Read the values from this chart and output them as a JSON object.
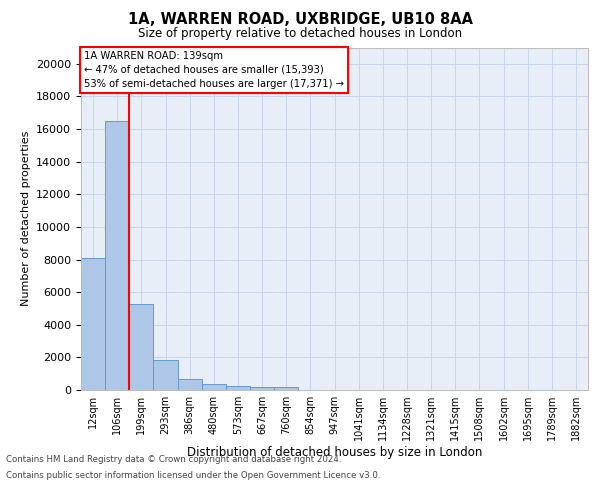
{
  "title1": "1A, WARREN ROAD, UXBRIDGE, UB10 8AA",
  "title2": "Size of property relative to detached houses in London",
  "xlabel": "Distribution of detached houses by size in London",
  "ylabel": "Number of detached properties",
  "categories": [
    "12sqm",
    "106sqm",
    "199sqm",
    "293sqm",
    "386sqm",
    "480sqm",
    "573sqm",
    "667sqm",
    "760sqm",
    "854sqm",
    "947sqm",
    "1041sqm",
    "1134sqm",
    "1228sqm",
    "1321sqm",
    "1415sqm",
    "1508sqm",
    "1602sqm",
    "1695sqm",
    "1789sqm",
    "1882sqm"
  ],
  "values": [
    8100,
    16500,
    5300,
    1850,
    700,
    350,
    270,
    200,
    160,
    0,
    0,
    0,
    0,
    0,
    0,
    0,
    0,
    0,
    0,
    0,
    0
  ],
  "bar_color": "#aec6e8",
  "bar_edge_color": "#6699cc",
  "annotation_line1": "1A WARREN ROAD: 139sqm",
  "annotation_line2": "← 47% of detached houses are smaller (15,393)",
  "annotation_line3": "53% of semi-detached houses are larger (17,371) →",
  "annotation_box_color": "white",
  "annotation_box_edge_color": "red",
  "marker_line_color": "red",
  "ylim": [
    0,
    21000
  ],
  "yticks": [
    0,
    2000,
    4000,
    6000,
    8000,
    10000,
    12000,
    14000,
    16000,
    18000,
    20000
  ],
  "grid_color": "#c8d4e8",
  "background_color": "#e8eef8",
  "footer1": "Contains HM Land Registry data © Crown copyright and database right 2024.",
  "footer2": "Contains public sector information licensed under the Open Government Licence v3.0."
}
